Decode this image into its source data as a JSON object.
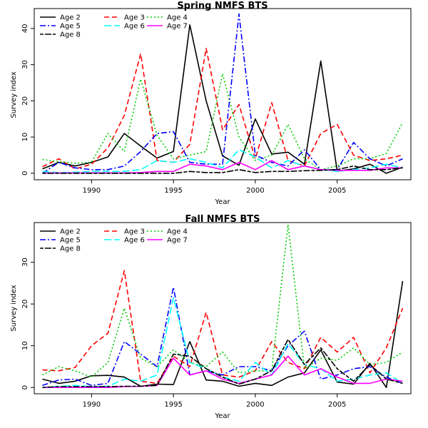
{
  "chart_data": [
    {
      "type": "line",
      "title": "Spring NMFS BTS",
      "xlabel": "Year",
      "ylabel": "Survey index",
      "xlim": [
        1986.5,
        2009.5
      ],
      "ylim": [
        -1.8,
        45.5
      ],
      "xticks": [
        1990,
        1995,
        2000,
        2005
      ],
      "yticks": [
        0,
        10,
        20,
        30,
        40
      ],
      "grid": false,
      "legend_position": "top-left",
      "x": [
        1987,
        1988,
        1989,
        1990,
        1991,
        1992,
        1993,
        1994,
        1995,
        1996,
        1997,
        1998,
        1999,
        2000,
        2001,
        2002,
        2003,
        2004,
        2005,
        2006,
        2007,
        2008,
        2009
      ],
      "series": [
        {
          "name": "Age 2",
          "color": "#000000",
          "dash": "solid",
          "values": [
            1.2,
            3.0,
            2.0,
            3.0,
            4.5,
            11.0,
            7.5,
            4.2,
            6.0,
            41.0,
            20.0,
            4.8,
            2.2,
            15.0,
            5.3,
            5.8,
            2.5,
            31.0,
            0.6,
            1.2,
            2.5,
            0.0,
            1.7
          ]
        },
        {
          "name": "Age 3",
          "color": "#ff0000",
          "dash": "long",
          "values": [
            1.8,
            4.0,
            1.2,
            2.5,
            7.0,
            16.0,
            33.0,
            3.5,
            3.0,
            8.0,
            34.5,
            12.0,
            19.0,
            4.0,
            19.5,
            3.5,
            2.0,
            11.0,
            13.5,
            5.0,
            3.5,
            4.0,
            5.0
          ]
        },
        {
          "name": "Age 4",
          "color": "#00cd00",
          "dash": "dot",
          "values": [
            3.8,
            3.2,
            2.8,
            3.0,
            11.0,
            6.0,
            26.0,
            10.5,
            4.0,
            5.0,
            6.0,
            27.5,
            10.0,
            3.5,
            5.0,
            13.5,
            4.0,
            1.0,
            2.0,
            4.0,
            4.0,
            5.5,
            14.0
          ]
        },
        {
          "name": "Age 5",
          "color": "#0000ff",
          "dash": "dashdot",
          "values": [
            0.0,
            3.0,
            1.5,
            1.0,
            1.0,
            2.0,
            6.0,
            11.0,
            11.5,
            3.0,
            2.5,
            2.5,
            44.0,
            5.0,
            3.0,
            2.0,
            6.5,
            1.0,
            1.0,
            8.5,
            4.0,
            2.0,
            4.0
          ]
        },
        {
          "name": "Age 6",
          "color": "#00ffff",
          "dash": "longdash",
          "values": [
            0.5,
            0.2,
            0.3,
            0.5,
            0.5,
            0.5,
            1.0,
            3.5,
            3.0,
            4.0,
            3.0,
            1.5,
            6.5,
            4.5,
            1.5,
            3.5,
            2.0,
            1.0,
            0.5,
            1.0,
            1.5,
            2.5,
            1.5
          ]
        },
        {
          "name": "Age 7",
          "color": "#ff00ff",
          "dash": "solid",
          "values": [
            0.1,
            0.1,
            0.1,
            0.1,
            0.1,
            0.1,
            0.2,
            0.5,
            0.5,
            2.5,
            2.0,
            1.0,
            3.0,
            1.0,
            3.5,
            1.0,
            2.0,
            1.0,
            0.8,
            0.8,
            0.8,
            1.5,
            1.5
          ]
        },
        {
          "name": "Age 8",
          "color": "#000000",
          "dash": "twodash",
          "values": [
            0.0,
            0.0,
            0.0,
            0.0,
            0.0,
            0.0,
            0.0,
            0.0,
            0.0,
            0.5,
            0.2,
            0.2,
            1.0,
            0.2,
            0.5,
            0.5,
            0.7,
            0.8,
            1.0,
            2.0,
            1.0,
            1.0,
            1.5
          ]
        }
      ]
    },
    {
      "type": "line",
      "title": "Fall NMFS BTS",
      "xlabel": "Year",
      "ylabel": "Survey index",
      "xlim": [
        1986.5,
        2009.5
      ],
      "ylim": [
        -1.5,
        39.5
      ],
      "xticks": [
        1990,
        1995,
        2000,
        2005
      ],
      "yticks": [
        0,
        10,
        20,
        30
      ],
      "grid": false,
      "legend_position": "top-left",
      "x": [
        1987,
        1988,
        1989,
        1990,
        1991,
        1992,
        1993,
        1994,
        1995,
        1996,
        1997,
        1998,
        1999,
        2000,
        2001,
        2002,
        2003,
        2004,
        2005,
        2006,
        2007,
        2008,
        2009
      ],
      "series": [
        {
          "name": "Age 2",
          "color": "#000000",
          "dash": "solid",
          "values": [
            2.0,
            1.0,
            1.5,
            2.8,
            2.9,
            2.5,
            0.3,
            0.8,
            0.7,
            11.0,
            1.8,
            1.5,
            0.3,
            1.0,
            0.5,
            2.5,
            3.5,
            9.0,
            1.3,
            0.8,
            5.8,
            0.0,
            25.5
          ]
        },
        {
          "name": "Age 3",
          "color": "#ff0000",
          "dash": "long",
          "values": [
            4.2,
            4.0,
            4.8,
            10.0,
            13.0,
            28.0,
            1.5,
            1.0,
            7.5,
            5.0,
            18.0,
            3.0,
            2.5,
            4.0,
            11.0,
            6.0,
            4.5,
            12.0,
            8.5,
            12.0,
            3.5,
            9.5,
            19.0
          ]
        },
        {
          "name": "Age 4",
          "color": "#00cd00",
          "dash": "dot",
          "values": [
            3.0,
            5.0,
            4.0,
            2.5,
            6.0,
            19.0,
            7.0,
            5.0,
            9.0,
            6.0,
            5.0,
            8.5,
            3.5,
            4.0,
            4.0,
            39.0,
            4.5,
            7.0,
            6.5,
            9.5,
            5.5,
            6.0,
            8.5
          ]
        },
        {
          "name": "Age 5",
          "color": "#0000ff",
          "dash": "dashdot",
          "values": [
            0.5,
            1.8,
            2.0,
            0.5,
            1.0,
            11.0,
            8.0,
            5.0,
            24.0,
            3.0,
            4.0,
            3.0,
            5.0,
            5.0,
            4.0,
            10.0,
            13.5,
            2.0,
            3.0,
            4.5,
            5.0,
            2.5,
            1.0
          ]
        },
        {
          "name": "Age 6",
          "color": "#00ffff",
          "dash": "longdash",
          "values": [
            0.0,
            0.3,
            0.5,
            0.2,
            0.3,
            2.0,
            1.5,
            3.0,
            21.5,
            6.0,
            4.5,
            2.5,
            1.5,
            6.0,
            3.0,
            10.5,
            5.5,
            4.5,
            1.5,
            2.0,
            3.0,
            3.5,
            1.0
          ]
        },
        {
          "name": "Age 7",
          "color": "#ff00ff",
          "dash": "solid",
          "values": [
            0.0,
            0.0,
            0.0,
            0.0,
            0.0,
            0.2,
            0.3,
            0.5,
            7.0,
            3.0,
            4.0,
            2.0,
            1.0,
            2.0,
            3.0,
            7.5,
            3.0,
            4.5,
            2.5,
            1.0,
            1.0,
            2.0,
            1.5
          ]
        },
        {
          "name": "Age 8",
          "color": "#000000",
          "dash": "twodash",
          "values": [
            0.0,
            0.2,
            0.2,
            0.2,
            0.2,
            0.3,
            0.3,
            0.5,
            8.0,
            7.5,
            4.5,
            2.5,
            0.8,
            2.0,
            4.0,
            11.5,
            5.5,
            9.5,
            4.5,
            1.5,
            5.5,
            2.0,
            1.0
          ]
        }
      ]
    }
  ]
}
